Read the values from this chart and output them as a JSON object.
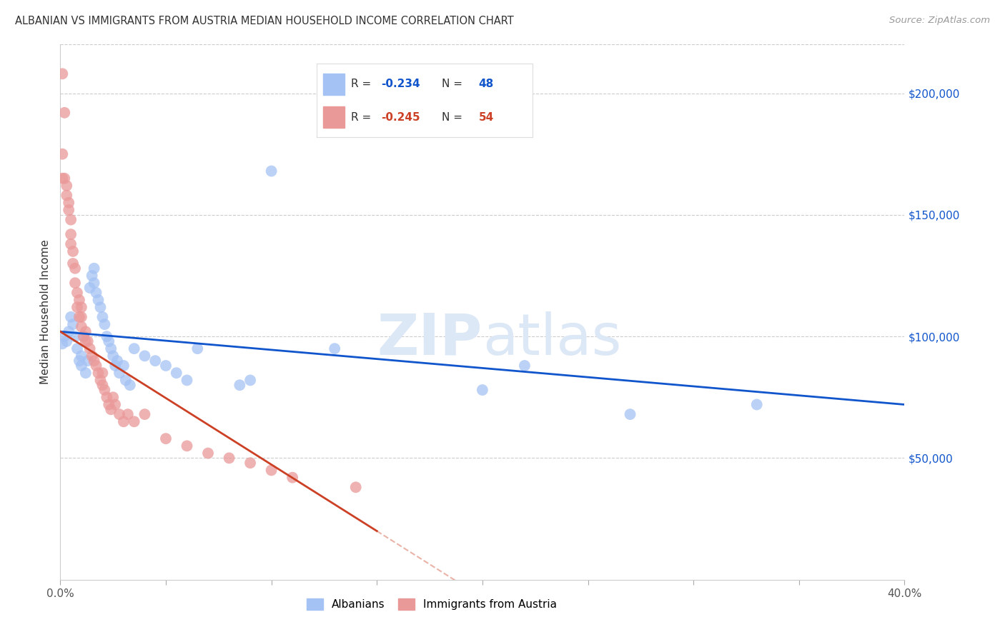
{
  "title": "ALBANIAN VS IMMIGRANTS FROM AUSTRIA MEDIAN HOUSEHOLD INCOME CORRELATION CHART",
  "source": "Source: ZipAtlas.com",
  "ylabel": "Median Household Income",
  "xlim": [
    0.0,
    0.4
  ],
  "ylim": [
    0,
    220000
  ],
  "blue_R": -0.234,
  "blue_N": 48,
  "pink_R": -0.245,
  "pink_N": 54,
  "blue_color": "#a4c2f4",
  "pink_color": "#ea9999",
  "blue_line_color": "#1155cc",
  "pink_line_color": "#cc4125",
  "blue_x": [
    0.001,
    0.002,
    0.003,
    0.004,
    0.005,
    0.006,
    0.007,
    0.008,
    0.009,
    0.01,
    0.01,
    0.011,
    0.012,
    0.013,
    0.014,
    0.015,
    0.016,
    0.016,
    0.017,
    0.018,
    0.019,
    0.02,
    0.021,
    0.022,
    0.023,
    0.024,
    0.025,
    0.026,
    0.027,
    0.028,
    0.03,
    0.031,
    0.033,
    0.035,
    0.04,
    0.045,
    0.05,
    0.055,
    0.06,
    0.065,
    0.085,
    0.09,
    0.1,
    0.13,
    0.2,
    0.22,
    0.27,
    0.33
  ],
  "blue_y": [
    97000,
    100000,
    98000,
    102000,
    108000,
    105000,
    100000,
    95000,
    90000,
    92000,
    88000,
    100000,
    85000,
    90000,
    120000,
    125000,
    128000,
    122000,
    118000,
    115000,
    112000,
    108000,
    105000,
    100000,
    98000,
    95000,
    92000,
    88000,
    90000,
    85000,
    88000,
    82000,
    80000,
    95000,
    92000,
    90000,
    88000,
    85000,
    82000,
    95000,
    80000,
    82000,
    168000,
    95000,
    78000,
    88000,
    68000,
    72000
  ],
  "pink_x": [
    0.001,
    0.001,
    0.001,
    0.002,
    0.002,
    0.003,
    0.003,
    0.004,
    0.004,
    0.005,
    0.005,
    0.005,
    0.006,
    0.006,
    0.007,
    0.007,
    0.008,
    0.008,
    0.009,
    0.009,
    0.01,
    0.01,
    0.01,
    0.011,
    0.012,
    0.012,
    0.013,
    0.014,
    0.015,
    0.016,
    0.017,
    0.018,
    0.019,
    0.02,
    0.02,
    0.021,
    0.022,
    0.023,
    0.024,
    0.025,
    0.026,
    0.028,
    0.03,
    0.032,
    0.035,
    0.04,
    0.05,
    0.06,
    0.07,
    0.08,
    0.09,
    0.1,
    0.11,
    0.14
  ],
  "pink_y": [
    208000,
    175000,
    165000,
    192000,
    165000,
    162000,
    158000,
    155000,
    152000,
    148000,
    142000,
    138000,
    135000,
    130000,
    128000,
    122000,
    118000,
    112000,
    108000,
    115000,
    112000,
    108000,
    104000,
    100000,
    98000,
    102000,
    98000,
    95000,
    92000,
    90000,
    88000,
    85000,
    82000,
    80000,
    85000,
    78000,
    75000,
    72000,
    70000,
    75000,
    72000,
    68000,
    65000,
    68000,
    65000,
    68000,
    58000,
    55000,
    52000,
    50000,
    48000,
    45000,
    42000,
    38000
  ],
  "legend_blue_label": "Albanians",
  "legend_pink_label": "Immigrants from Austria"
}
